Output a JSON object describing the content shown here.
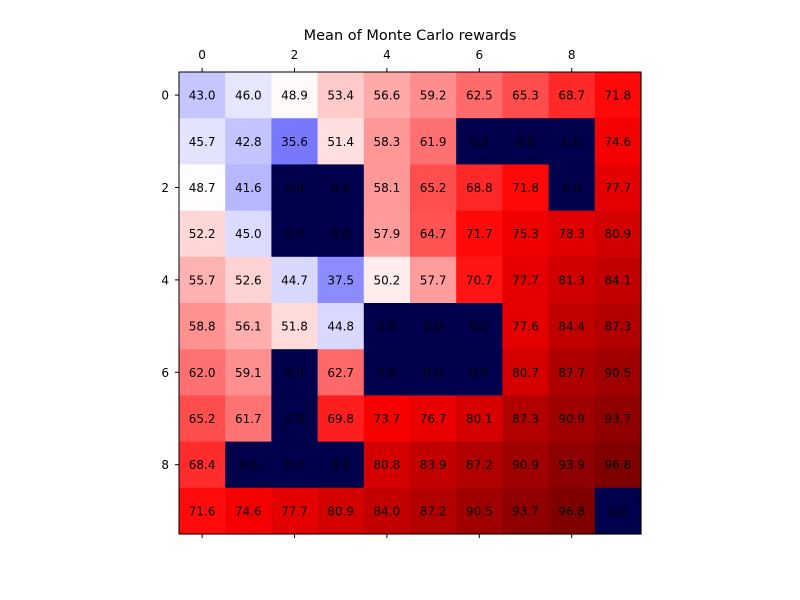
{
  "chart_data": {
    "type": "heatmap",
    "title": "Mean of Monte Carlo rewards",
    "xlabel": "",
    "ylabel": "",
    "x_ticks": [
      "0",
      "2",
      "4",
      "6",
      "8"
    ],
    "y_ticks": [
      "0",
      "2",
      "4",
      "6",
      "8"
    ],
    "x_axis_position": "top",
    "colormap": "seismic",
    "color_range": [
      0.0,
      96.8
    ],
    "grid": false,
    "values": [
      [
        43.0,
        46.0,
        48.9,
        53.4,
        56.6,
        59.2,
        62.5,
        65.3,
        68.7,
        71.8
      ],
      [
        45.7,
        42.8,
        35.6,
        51.4,
        58.3,
        61.9,
        0.0,
        0.0,
        0.0,
        74.6
      ],
      [
        48.7,
        41.6,
        0.0,
        0.0,
        58.1,
        65.2,
        68.8,
        71.8,
        0.0,
        77.7
      ],
      [
        52.2,
        45.0,
        0.0,
        0.0,
        57.9,
        64.7,
        71.7,
        75.3,
        78.3,
        80.9
      ],
      [
        55.7,
        52.6,
        44.7,
        37.5,
        50.2,
        57.7,
        70.7,
        77.7,
        81.3,
        84.1
      ],
      [
        58.8,
        56.1,
        51.8,
        44.8,
        0.0,
        0.0,
        0.0,
        77.6,
        84.4,
        87.3
      ],
      [
        62.0,
        59.1,
        0.0,
        62.7,
        0.0,
        0.0,
        0.0,
        80.7,
        87.7,
        90.5
      ],
      [
        65.2,
        61.7,
        0.0,
        69.8,
        73.7,
        76.7,
        80.1,
        87.3,
        90.9,
        93.7
      ],
      [
        68.4,
        0.0,
        0.0,
        0.0,
        80.8,
        83.9,
        87.2,
        90.9,
        93.9,
        96.8
      ],
      [
        71.6,
        74.6,
        77.7,
        80.9,
        84.0,
        87.2,
        90.5,
        93.7,
        96.8,
        0.0
      ]
    ]
  }
}
